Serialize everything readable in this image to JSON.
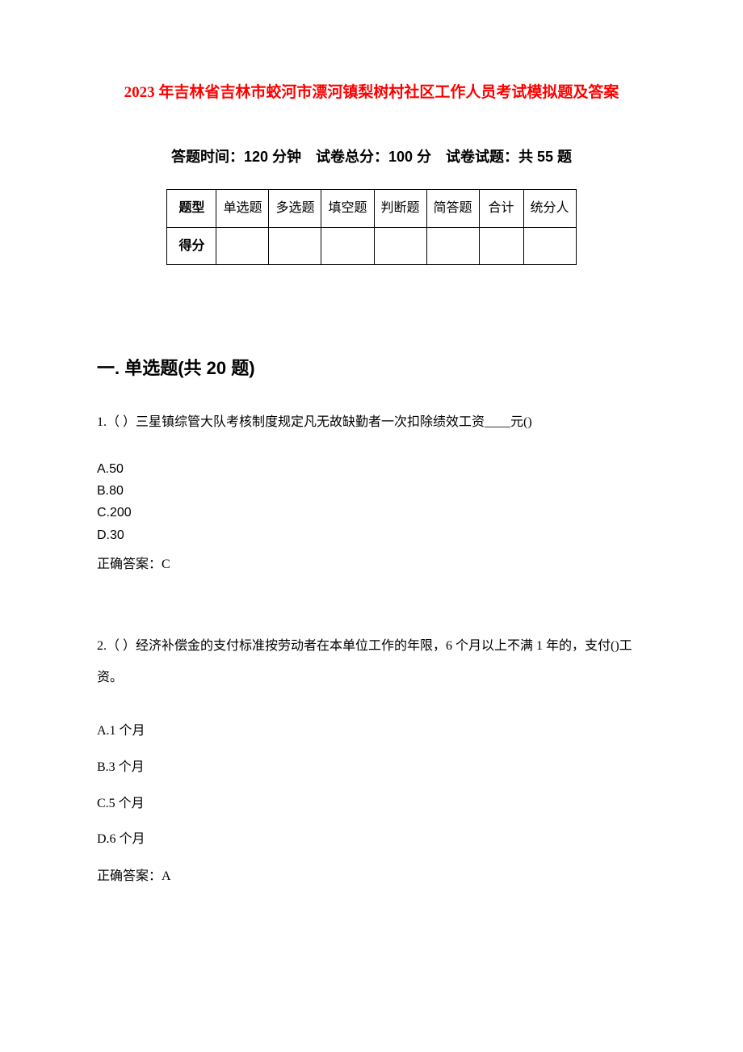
{
  "title": "2023 年吉林省吉林市蛟河市漂河镇梨树村社区工作人员考试模拟题及答案",
  "title_color": "#ff0000",
  "subtitle": "答题时间：120 分钟　试卷总分：100 分　试卷试题：共 55 题",
  "table": {
    "header_row": [
      "题型",
      "单选题",
      "多选题",
      "填空题",
      "判断题",
      "简答题",
      "合计",
      "统分人"
    ],
    "score_row_label": "得分",
    "score_cells": [
      "",
      "",
      "",
      "",
      "",
      "",
      ""
    ],
    "border_color": "#000000"
  },
  "section": {
    "heading": "一. 单选题(共 20 题)"
  },
  "q1": {
    "text": "1.（ ）三星镇综管大队考核制度规定凡无故缺勤者一次扣除绩效工资____元()",
    "option_a": "A.50",
    "option_b": "B.80",
    "option_c": "C.200",
    "option_d": "D.30",
    "answer": "正确答案：C"
  },
  "q2": {
    "text": "2.（ ）经济补偿金的支付标准按劳动者在本单位工作的年限，6 个月以上不满 1 年的，支付()工资。",
    "option_a": "A.1 个月",
    "option_b": "B.3 个月",
    "option_c": "C.5  个月",
    "option_d": "D.6 个月",
    "answer": "正确答案：A"
  },
  "colors": {
    "background": "#ffffff",
    "text": "#000000"
  },
  "fonts": {
    "title_size": 19,
    "subtitle_size": 18,
    "section_size": 22,
    "body_size": 16
  }
}
